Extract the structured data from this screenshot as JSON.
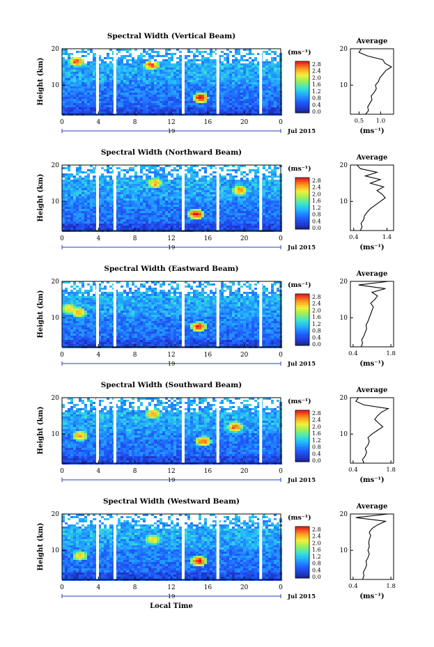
{
  "chart_data": [
    {
      "type": "heatmap",
      "title": "Spectral Width (Vertical Beam)",
      "ylabel": "Height (km)",
      "ylim": [
        2,
        20
      ],
      "yticks": [
        "20",
        "10"
      ],
      "xticks": [
        "0",
        "4",
        "8",
        "12",
        "16",
        "20",
        "0"
      ],
      "xlim": [
        0,
        24
      ],
      "date_day": "19",
      "date_month": "Jul 2015",
      "colorbar": {
        "unit": "(ms⁻¹)",
        "ticks": [
          "2.8",
          "2.4",
          "2.0",
          "1.6",
          "1.2",
          "0.8",
          "0.4",
          "0.0"
        ],
        "range": [
          0.0,
          2.8
        ]
      },
      "gaps_hours": [
        3.9,
        5.8,
        13.3,
        17.1,
        21.8
      ],
      "hotspots": [
        {
          "t": 15.2,
          "h": 6.5,
          "v": 2.8
        },
        {
          "t": 9.8,
          "h": 15.5,
          "v": 2.6
        },
        {
          "t": 1.6,
          "h": 16.5,
          "v": 2.6
        }
      ],
      "average": {
        "title": "Average",
        "xlabel": "(ms⁻¹)",
        "xticks": [
          "0.5",
          "1.0"
        ],
        "xlim": [
          0.3,
          1.3
        ],
        "yticks": [
          "20",
          "10"
        ],
        "profile": [
          [
            2,
            0.65
          ],
          [
            3,
            0.72
          ],
          [
            4,
            0.7
          ],
          [
            5,
            0.75
          ],
          [
            6,
            0.8
          ],
          [
            7,
            0.78
          ],
          [
            8,
            0.85
          ],
          [
            9,
            0.9
          ],
          [
            10,
            0.88
          ],
          [
            11,
            0.95
          ],
          [
            12,
            0.98
          ],
          [
            13,
            1.05
          ],
          [
            14,
            1.12
          ],
          [
            15,
            1.25
          ],
          [
            16,
            1.1
          ],
          [
            17,
            1.05
          ],
          [
            18,
            0.7
          ],
          [
            19,
            0.5
          ],
          [
            20,
            0.55
          ]
        ]
      }
    },
    {
      "type": "heatmap",
      "title": "Spectral Width (Northward Beam)",
      "ylabel": "Height (km)",
      "ylim": [
        2,
        20
      ],
      "yticks": [
        "20",
        "10"
      ],
      "xticks": [
        "0",
        "4",
        "8",
        "12",
        "16",
        "20",
        "0"
      ],
      "xlim": [
        0,
        24
      ],
      "date_day": "19",
      "date_month": "Jul 2015",
      "colorbar": {
        "unit": "(ms⁻¹)",
        "ticks": [
          "2.8",
          "2.4",
          "2.0",
          "1.6",
          "1.2",
          "0.8",
          "0.4",
          "0.0"
        ],
        "range": [
          0.0,
          2.8
        ]
      },
      "gaps_hours": [
        3.9,
        5.8,
        13.3,
        17.1,
        21.8
      ],
      "hotspots": [
        {
          "t": 14.7,
          "h": 6.5,
          "v": 2.8
        },
        {
          "t": 10.2,
          "h": 15.0,
          "v": 2.4
        },
        {
          "t": 19.5,
          "h": 13.0,
          "v": 2.4
        }
      ],
      "average": {
        "title": "Average",
        "xlabel": "(ms⁻¹)",
        "xticks": [
          "0.4",
          "1.4"
        ],
        "xlim": [
          0.3,
          1.6
        ],
        "yticks": [
          "20",
          "10"
        ],
        "profile": [
          [
            2,
            0.6
          ],
          [
            3,
            0.65
          ],
          [
            4,
            0.62
          ],
          [
            5,
            0.7
          ],
          [
            6,
            0.72
          ],
          [
            7,
            0.8
          ],
          [
            8,
            0.9
          ],
          [
            9,
            1.05
          ],
          [
            10,
            1.2
          ],
          [
            11,
            1.35
          ],
          [
            12,
            1.25
          ],
          [
            13,
            1.1
          ],
          [
            14,
            1.3
          ],
          [
            15,
            0.9
          ],
          [
            16,
            1.2
          ],
          [
            17,
            0.75
          ],
          [
            18,
            1.1
          ],
          [
            19,
            0.6
          ],
          [
            20,
            0.5
          ]
        ]
      }
    },
    {
      "type": "heatmap",
      "title": "Spectral Width (Eastward Beam)",
      "ylabel": "Height (km)",
      "ylim": [
        2,
        20
      ],
      "yticks": [
        "20",
        "10"
      ],
      "xticks": [
        "0",
        "4",
        "8",
        "12",
        "16",
        "20",
        "0"
      ],
      "xlim": [
        0,
        24
      ],
      "date_day": "19",
      "date_month": "Jul 2015",
      "colorbar": {
        "unit": "(ms⁻¹)",
        "ticks": [
          "2.8",
          "2.4",
          "2.0",
          "1.6",
          "1.2",
          "0.8",
          "0.4",
          "0.0"
        ],
        "range": [
          0.0,
          2.8
        ]
      },
      "gaps_hours": [
        3.9,
        5.8,
        13.3,
        17.1,
        21.8
      ],
      "hotspots": [
        {
          "t": 15.0,
          "h": 7.5,
          "v": 2.8
        },
        {
          "t": 1.8,
          "h": 11.5,
          "v": 2.4
        },
        {
          "t": 0.8,
          "h": 12.5,
          "v": 2.2
        }
      ],
      "average": {
        "title": "Average",
        "xlabel": "(ms⁻¹)",
        "xticks": [
          "0.4",
          "1.8"
        ],
        "xlim": [
          0.3,
          1.9
        ],
        "yticks": [
          "20",
          "10"
        ],
        "profile": [
          [
            2,
            0.7
          ],
          [
            3,
            0.75
          ],
          [
            4,
            0.72
          ],
          [
            5,
            0.8
          ],
          [
            6,
            0.85
          ],
          [
            7,
            0.9
          ],
          [
            8,
            0.88
          ],
          [
            9,
            0.95
          ],
          [
            10,
            1.0
          ],
          [
            11,
            1.05
          ],
          [
            12,
            1.1
          ],
          [
            13,
            1.15
          ],
          [
            14,
            1.05
          ],
          [
            15,
            1.2
          ],
          [
            16,
            1.3
          ],
          [
            17,
            1.1
          ],
          [
            18,
            1.6
          ],
          [
            19,
            0.6
          ],
          [
            20,
            1.7
          ]
        ]
      }
    },
    {
      "type": "heatmap",
      "title": "Spectral Width (Southward Beam)",
      "ylabel": "Height (km)",
      "ylim": [
        2,
        20
      ],
      "yticks": [
        "20",
        "10"
      ],
      "xticks": [
        "0",
        "4",
        "8",
        "12",
        "16",
        "20",
        "0"
      ],
      "xlim": [
        0,
        24
      ],
      "date_day": "19",
      "date_month": "Jul 2015",
      "colorbar": {
        "unit": "(ms⁻¹)",
        "ticks": [
          "2.8",
          "2.4",
          "2.0",
          "1.6",
          "1.2",
          "0.8",
          "0.4",
          "0.0"
        ],
        "range": [
          0.0,
          2.8
        ]
      },
      "gaps_hours": [
        3.9,
        5.8,
        13.3,
        17.1,
        21.8
      ],
      "hotspots": [
        {
          "t": 15.5,
          "h": 8.0,
          "v": 2.6
        },
        {
          "t": 2.0,
          "h": 9.5,
          "v": 2.4
        },
        {
          "t": 19.0,
          "h": 12.0,
          "v": 2.6
        },
        {
          "t": 10.0,
          "h": 15.5,
          "v": 2.4
        }
      ],
      "average": {
        "title": "Average",
        "xlabel": "(ms⁻¹)",
        "xticks": [
          "0.4",
          "1.8"
        ],
        "xlim": [
          0.3,
          1.9
        ],
        "yticks": [
          "20",
          "10"
        ],
        "profile": [
          [
            2,
            0.8
          ],
          [
            3,
            0.75
          ],
          [
            4,
            0.85
          ],
          [
            5,
            0.9
          ],
          [
            6,
            0.85
          ],
          [
            7,
            0.95
          ],
          [
            8,
            1.0
          ],
          [
            9,
            0.95
          ],
          [
            10,
            1.1
          ],
          [
            11,
            1.3
          ],
          [
            12,
            1.5
          ],
          [
            13,
            1.35
          ],
          [
            14,
            1.2
          ],
          [
            15,
            1.3
          ],
          [
            16,
            1.45
          ],
          [
            17,
            1.7
          ],
          [
            18,
            0.8
          ],
          [
            19,
            0.5
          ],
          [
            20,
            0.6
          ]
        ]
      }
    },
    {
      "type": "heatmap",
      "title": "Spectral Width (Westward Beam)",
      "ylabel": "Height (km)",
      "ylim": [
        2,
        20
      ],
      "yticks": [
        "20",
        "10"
      ],
      "xticks": [
        "0",
        "4",
        "8",
        "12",
        "16",
        "20",
        "0"
      ],
      "xlim": [
        0,
        24
      ],
      "date_day": "19",
      "date_month": "Jul 2015",
      "xlabel": "Local Time",
      "colorbar": {
        "unit": "(ms⁻¹)",
        "ticks": [
          "2.8",
          "2.4",
          "2.0",
          "1.6",
          "1.2",
          "0.8",
          "0.4",
          "0.0"
        ],
        "range": [
          0.0,
          2.8
        ]
      },
      "gaps_hours": [
        3.9,
        5.8,
        13.3,
        17.1,
        21.8
      ],
      "hotspots": [
        {
          "t": 15.0,
          "h": 7.0,
          "v": 2.8
        },
        {
          "t": 2.0,
          "h": 8.5,
          "v": 2.2
        },
        {
          "t": 10.0,
          "h": 13.0,
          "v": 2.2
        }
      ],
      "average": {
        "title": "Average",
        "xlabel": "(ms⁻¹)",
        "xticks": [
          "0.4",
          "1.8"
        ],
        "xlim": [
          0.3,
          1.9
        ],
        "yticks": [
          "20",
          "10"
        ],
        "profile": [
          [
            2,
            0.75
          ],
          [
            3,
            0.8
          ],
          [
            4,
            0.78
          ],
          [
            5,
            0.85
          ],
          [
            6,
            0.9
          ],
          [
            7,
            0.88
          ],
          [
            8,
            0.95
          ],
          [
            9,
            1.0
          ],
          [
            10,
            0.95
          ],
          [
            11,
            1.0
          ],
          [
            12,
            0.98
          ],
          [
            13,
            1.0
          ],
          [
            14,
            1.05
          ],
          [
            15,
            1.0
          ],
          [
            16,
            1.1
          ],
          [
            17,
            1.3
          ],
          [
            18,
            1.6
          ],
          [
            19,
            0.5
          ],
          [
            20,
            1.7
          ]
        ]
      }
    }
  ]
}
